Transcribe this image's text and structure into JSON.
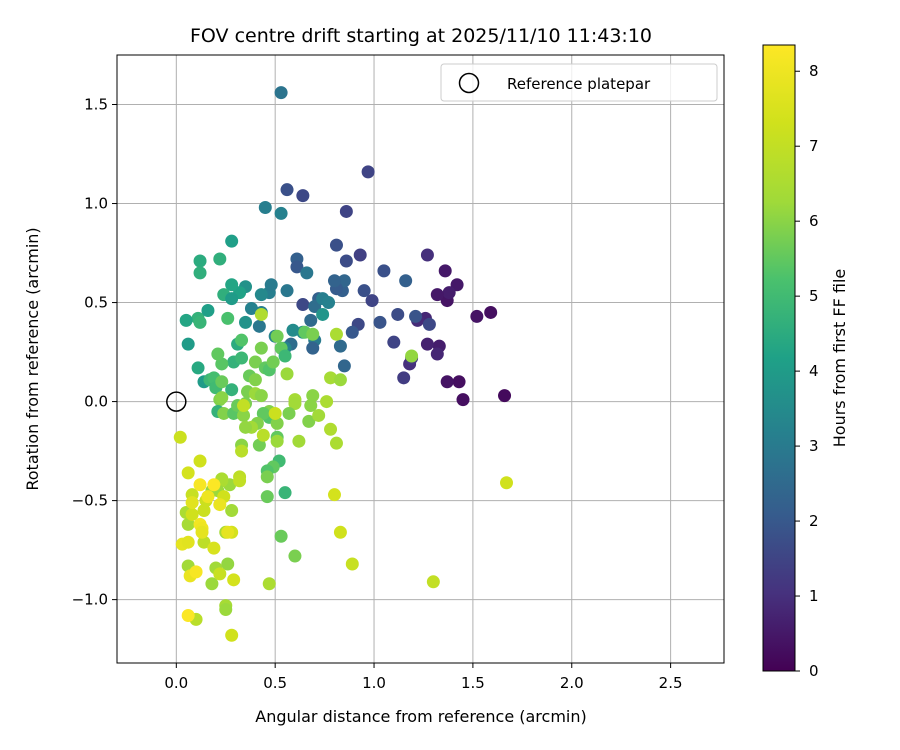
{
  "chart_data": {
    "type": "scatter",
    "title": "FOV centre drift starting at 2025/11/10 11:43:10",
    "xlabel": "Angular distance from reference (arcmin)",
    "ylabel": "Rotation from reference (arcmin)",
    "xlim": [
      -0.3,
      2.77
    ],
    "ylim": [
      -1.32,
      1.75
    ],
    "xticks": [
      0.0,
      0.5,
      1.0,
      1.5,
      2.0,
      2.5
    ],
    "xtick_labels": [
      "0.0",
      "0.5",
      "1.0",
      "1.5",
      "2.0",
      "2.5"
    ],
    "yticks": [
      -1.0,
      -0.5,
      0.0,
      0.5,
      1.0,
      1.5
    ],
    "ytick_labels": [
      "−1.0",
      "−0.5",
      "0.0",
      "0.5",
      "1.0",
      "1.5"
    ],
    "grid": true,
    "legend": {
      "position": "top-right",
      "entries": [
        "Reference platepar"
      ]
    },
    "reference_point": {
      "x": 0.0,
      "y": 0.0,
      "label": "Reference platepar"
    },
    "colorbar": {
      "label": "Hours from first FF file",
      "colormap": "viridis",
      "range": [
        0,
        8.35
      ],
      "ticks": [
        0,
        1,
        2,
        3,
        4,
        5,
        6,
        7,
        8
      ],
      "tick_labels": [
        "0",
        "1",
        "2",
        "3",
        "4",
        "5",
        "6",
        "7",
        "8"
      ]
    },
    "points": [
      [
        1.66,
        0.03,
        0.2
      ],
      [
        1.45,
        0.01,
        0.3
      ],
      [
        1.59,
        0.45,
        0.3
      ],
      [
        1.52,
        0.43,
        0.4
      ],
      [
        1.43,
        0.1,
        0.3
      ],
      [
        1.37,
        0.1,
        0.4
      ],
      [
        1.37,
        0.51,
        0.4
      ],
      [
        1.42,
        0.59,
        0.5
      ],
      [
        1.38,
        0.55,
        0.6
      ],
      [
        1.36,
        0.66,
        0.5
      ],
      [
        1.32,
        0.54,
        0.5
      ],
      [
        1.33,
        0.28,
        0.6
      ],
      [
        1.32,
        0.24,
        0.8
      ],
      [
        1.27,
        0.29,
        0.7
      ],
      [
        1.26,
        0.42,
        0.8
      ],
      [
        1.22,
        0.41,
        0.9
      ],
      [
        1.18,
        0.19,
        1.0
      ],
      [
        1.15,
        0.12,
        1.3
      ],
      [
        1.28,
        0.39,
        1.6
      ],
      [
        1.21,
        0.43,
        1.9
      ],
      [
        1.19,
        0.22,
        1.2
      ],
      [
        1.27,
        0.74,
        1.0
      ],
      [
        0.97,
        1.16,
        1.5
      ],
      [
        0.93,
        0.74,
        1.4
      ],
      [
        0.86,
        0.71,
        1.7
      ],
      [
        0.86,
        0.96,
        1.5
      ],
      [
        0.92,
        0.39,
        1.6
      ],
      [
        0.99,
        0.51,
        1.5
      ],
      [
        1.05,
        0.66,
        1.8
      ],
      [
        1.1,
        0.3,
        1.5
      ],
      [
        1.12,
        0.44,
        1.7
      ],
      [
        1.16,
        0.61,
        2.2
      ],
      [
        1.03,
        0.4,
        1.9
      ],
      [
        0.95,
        0.56,
        1.8
      ],
      [
        0.89,
        0.35,
        2.0
      ],
      [
        0.84,
        0.56,
        2.2
      ],
      [
        0.85,
        0.61,
        2.4
      ],
      [
        0.81,
        0.79,
        1.8
      ],
      [
        0.81,
        0.57,
        2.1
      ],
      [
        0.85,
        0.18,
        2.4
      ],
      [
        0.83,
        0.28,
        2.5
      ],
      [
        0.8,
        0.61,
        2.3
      ],
      [
        0.64,
        1.04,
        1.6
      ],
      [
        0.56,
        1.07,
        1.8
      ],
      [
        0.53,
        1.56,
        2.8
      ],
      [
        0.53,
        0.95,
        3.2
      ],
      [
        0.45,
        0.98,
        3.1
      ],
      [
        0.61,
        0.72,
        2.2
      ],
      [
        0.61,
        0.68,
        2.0
      ],
      [
        0.66,
        0.65,
        2.9
      ],
      [
        0.64,
        0.49,
        1.6
      ],
      [
        0.72,
        0.52,
        2.2
      ],
      [
        0.7,
        0.48,
        2.6
      ],
      [
        0.74,
        0.52,
        3.1
      ],
      [
        0.77,
        0.5,
        3.2
      ],
      [
        0.74,
        0.44,
        3.8
      ],
      [
        0.68,
        0.41,
        2.5
      ],
      [
        0.7,
        0.31,
        3.0
      ],
      [
        0.69,
        0.27,
        2.3
      ],
      [
        0.64,
        0.35,
        3.6
      ],
      [
        0.59,
        0.36,
        3.5
      ],
      [
        0.56,
        0.56,
        2.9
      ],
      [
        0.58,
        0.29,
        2.6
      ],
      [
        0.55,
        0.27,
        3.3
      ],
      [
        0.5,
        0.33,
        3.3
      ],
      [
        0.47,
        0.55,
        3.1
      ],
      [
        0.48,
        0.59,
        3.0
      ],
      [
        0.43,
        0.54,
        3.4
      ],
      [
        0.43,
        0.45,
        3.1
      ],
      [
        0.42,
        0.38,
        2.9
      ],
      [
        0.38,
        0.47,
        3.2
      ],
      [
        0.35,
        0.58,
        3.7
      ],
      [
        0.35,
        0.4,
        3.7
      ],
      [
        0.32,
        0.55,
        4.2
      ],
      [
        0.28,
        0.59,
        4.3
      ],
      [
        0.28,
        0.81,
        4.1
      ],
      [
        0.22,
        0.72,
        4.6
      ],
      [
        0.12,
        0.71,
        4.5
      ],
      [
        0.12,
        0.65,
        4.6
      ],
      [
        0.11,
        0.42,
        4.7
      ],
      [
        0.12,
        0.4,
        4.8
      ],
      [
        0.05,
        0.41,
        4.3
      ],
      [
        0.06,
        0.29,
        4.0
      ],
      [
        0.16,
        0.46,
        4.1
      ],
      [
        0.24,
        0.54,
        4.6
      ],
      [
        0.28,
        0.52,
        4.0
      ],
      [
        0.26,
        0.42,
        5.2
      ],
      [
        0.31,
        0.29,
        4.5
      ],
      [
        0.33,
        0.31,
        5.3
      ],
      [
        0.29,
        0.2,
        4.7
      ],
      [
        0.33,
        0.22,
        4.9
      ],
      [
        0.23,
        0.19,
        5.4
      ],
      [
        0.21,
        0.24,
        5.5
      ],
      [
        0.11,
        0.17,
        4.4
      ],
      [
        0.14,
        0.1,
        4.0
      ],
      [
        0.17,
        0.11,
        4.9
      ],
      [
        0.19,
        0.12,
        5.1
      ],
      [
        0.2,
        0.07,
        5.0
      ],
      [
        0.23,
        0.1,
        5.6
      ],
      [
        0.28,
        0.06,
        4.7
      ],
      [
        0.22,
        0.01,
        5.9
      ],
      [
        0.23,
        0.02,
        6.0
      ],
      [
        0.21,
        -0.05,
        4.7
      ],
      [
        0.24,
        -0.06,
        5.9
      ],
      [
        0.29,
        -0.06,
        5.4
      ],
      [
        0.31,
        -0.02,
        5.6
      ],
      [
        0.34,
        -0.07,
        6.0
      ],
      [
        0.35,
        -0.01,
        5.8
      ],
      [
        0.36,
        0.05,
        5.8
      ],
      [
        0.37,
        0.13,
        5.6
      ],
      [
        0.4,
        0.11,
        5.9
      ],
      [
        0.4,
        0.04,
        6.2
      ],
      [
        0.43,
        0.03,
        6.0
      ],
      [
        0.4,
        0.2,
        5.8
      ],
      [
        0.43,
        0.27,
        5.8
      ],
      [
        0.45,
        0.17,
        5.5
      ],
      [
        0.47,
        0.16,
        5.3
      ],
      [
        0.49,
        0.2,
        5.7
      ],
      [
        0.53,
        0.27,
        5.5
      ],
      [
        0.55,
        0.23,
        4.9
      ],
      [
        0.51,
        0.33,
        5.7
      ],
      [
        0.56,
        0.14,
        6.2
      ],
      [
        0.6,
        0.01,
        6.4
      ],
      [
        0.6,
        -0.01,
        6.3
      ],
      [
        0.57,
        -0.06,
        5.8
      ],
      [
        0.47,
        -0.05,
        5.9
      ],
      [
        0.47,
        -0.08,
        5.3
      ],
      [
        0.44,
        -0.06,
        5.5
      ],
      [
        0.41,
        -0.11,
        5.9
      ],
      [
        0.38,
        -0.13,
        6.3
      ],
      [
        0.35,
        -0.13,
        6.1
      ],
      [
        0.42,
        -0.22,
        5.7
      ],
      [
        0.51,
        -0.11,
        5.9
      ],
      [
        0.51,
        -0.18,
        5.5
      ],
      [
        0.51,
        -0.2,
        6.2
      ],
      [
        0.52,
        -0.3,
        5.0
      ],
      [
        0.49,
        -0.33,
        5.5
      ],
      [
        0.46,
        -0.35,
        5.3
      ],
      [
        0.46,
        -0.38,
        5.8
      ],
      [
        0.46,
        -0.48,
        5.6
      ],
      [
        0.55,
        -0.46,
        4.8
      ],
      [
        0.53,
        -0.68,
        5.6
      ],
      [
        0.6,
        -0.78,
        5.8
      ],
      [
        0.68,
        -0.02,
        6.0
      ],
      [
        0.69,
        0.03,
        6.0
      ],
      [
        0.67,
        -0.1,
        5.9
      ],
      [
        0.72,
        -0.07,
        6.3
      ],
      [
        0.76,
        0.0,
        6.5
      ],
      [
        0.78,
        -0.14,
        6.6
      ],
      [
        0.81,
        -0.21,
        6.5
      ],
      [
        0.78,
        0.12,
        6.4
      ],
      [
        0.83,
        0.11,
        6.2
      ],
      [
        0.81,
        0.34,
        6.5
      ],
      [
        0.62,
        -0.2,
        6.3
      ],
      [
        0.65,
        0.35,
        5.5
      ],
      [
        0.69,
        0.34,
        5.8
      ],
      [
        1.19,
        0.23,
        6.1
      ],
      [
        0.33,
        -0.22,
        6.0
      ],
      [
        0.27,
        -0.42,
        6.2
      ],
      [
        0.28,
        -0.55,
        6.3
      ],
      [
        0.23,
        -0.4,
        6.5
      ],
      [
        0.25,
        -0.66,
        6.4
      ],
      [
        0.26,
        -0.82,
        6.1
      ],
      [
        0.2,
        -0.84,
        6.3
      ],
      [
        0.18,
        -0.92,
        6.2
      ],
      [
        0.25,
        -1.03,
        6.4
      ],
      [
        0.25,
        -1.05,
        6.2
      ],
      [
        0.1,
        -1.1,
        6.8
      ],
      [
        0.06,
        -0.83,
        6.3
      ],
      [
        0.06,
        -0.62,
        6.4
      ],
      [
        0.05,
        -0.56,
        6.5
      ],
      [
        0.14,
        -0.71,
        6.9
      ],
      [
        0.18,
        -0.45,
        6.1
      ],
      [
        0.21,
        -0.45,
        6.2
      ],
      [
        0.23,
        -0.39,
        6.5
      ],
      [
        0.12,
        -0.3,
        7.3
      ],
      [
        0.06,
        -0.36,
        7.4
      ],
      [
        0.02,
        -0.18,
        7.2
      ],
      [
        0.08,
        -0.47,
        7.1
      ],
      [
        0.08,
        -0.57,
        7.3
      ],
      [
        0.14,
        -0.55,
        7.2
      ],
      [
        0.15,
        -0.5,
        7.2
      ],
      [
        0.19,
        -0.74,
        7.5
      ],
      [
        0.24,
        -0.48,
        7.3
      ],
      [
        0.28,
        -0.66,
        7.4
      ],
      [
        0.29,
        -0.9,
        7.4
      ],
      [
        0.22,
        -0.87,
        7.1
      ],
      [
        0.28,
        -1.18,
        7.3
      ],
      [
        0.32,
        -0.38,
        6.9
      ],
      [
        0.32,
        -0.4,
        7.0
      ],
      [
        0.33,
        -0.25,
        6.8
      ],
      [
        0.44,
        -0.17,
        6.8
      ],
      [
        0.47,
        -0.92,
        6.5
      ],
      [
        0.5,
        -0.06,
        7.2
      ],
      [
        0.8,
        -0.47,
        7.4
      ],
      [
        0.83,
        -0.66,
        7.3
      ],
      [
        0.89,
        -0.82,
        7.1
      ],
      [
        1.3,
        -0.91,
        7.0
      ],
      [
        1.67,
        -0.41,
        7.3
      ],
      [
        0.43,
        0.44,
        6.6
      ],
      [
        0.03,
        -0.72,
        7.8
      ],
      [
        0.06,
        -0.71,
        7.7
      ],
      [
        0.07,
        -0.88,
        7.9
      ],
      [
        0.1,
        -0.86,
        8.2
      ],
      [
        0.12,
        -0.62,
        8.1
      ],
      [
        0.13,
        -0.64,
        8.0
      ],
      [
        0.13,
        -0.66,
        7.8
      ],
      [
        0.12,
        -0.42,
        8.2
      ],
      [
        0.19,
        -0.42,
        8.3
      ],
      [
        0.16,
        -0.48,
        8.0
      ],
      [
        0.22,
        -0.52,
        7.9
      ],
      [
        0.26,
        -0.66,
        7.8
      ],
      [
        0.06,
        -1.08,
        8.3
      ],
      [
        0.08,
        -0.51,
        7.7
      ],
      [
        0.34,
        -0.02,
        7.0
      ]
    ]
  }
}
